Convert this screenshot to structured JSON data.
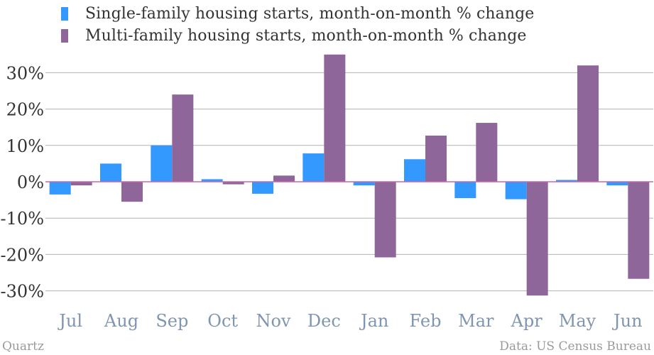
{
  "chart_data": {
    "type": "bar",
    "categories": [
      "Jul",
      "Aug",
      "Sep",
      "Oct",
      "Nov",
      "Dec",
      "Jan",
      "Feb",
      "Mar",
      "Apr",
      "May",
      "Jun"
    ],
    "series": [
      {
        "name": "Single-family housing starts, month-on-month % change",
        "color": "#3399ff",
        "values": [
          -3.5,
          5.0,
          10.0,
          0.7,
          -3.3,
          7.8,
          -1.0,
          6.2,
          -4.5,
          -4.8,
          0.5,
          -1.0
        ]
      },
      {
        "name": "Multi-family housing starts, month-on-month % change",
        "color": "#8e6699",
        "values": [
          -1.0,
          -5.5,
          24.0,
          -0.7,
          1.7,
          35.0,
          -20.8,
          12.7,
          16.2,
          -31.3,
          32.0,
          -26.7
        ]
      }
    ],
    "ylim": [
      -35,
      35
    ],
    "yticks": [
      -30,
      -20,
      -10,
      0,
      10,
      20,
      30
    ],
    "ytick_labels": [
      "-30%",
      "-20%",
      "-10%",
      "0%",
      "10%",
      "20%",
      "30%"
    ],
    "grid": true,
    "legend": "top-left",
    "xlabel": "",
    "ylabel": ""
  },
  "footer": {
    "brand": "Quartz",
    "source": "Data: US Census Bureau"
  },
  "colors": {
    "zero_line": "#cc66aa",
    "grid": "#b3b3b3",
    "tick_label": "#333333",
    "category_label": "#7f95b0"
  }
}
